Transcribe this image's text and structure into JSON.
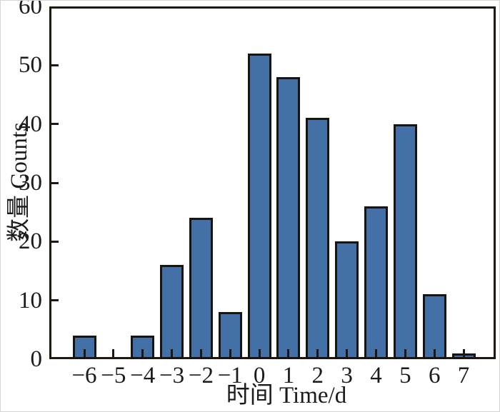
{
  "figure": {
    "background": "#ffffff",
    "frame_color": "#20180f",
    "bar_fill_color": "#4470a8",
    "bar_border_color": "#191410",
    "text_color": "#1b1b1b"
  },
  "chart_data": {
    "type": "bar",
    "title": "",
    "xlabel": "时间 Time/d",
    "ylabel": "数量 Counts",
    "categories": [
      "−6",
      "−5",
      "−4",
      "−3",
      "−2",
      "−1",
      "0",
      "1",
      "2",
      "3",
      "4",
      "5",
      "6",
      "7"
    ],
    "values": [
      4,
      0,
      4,
      16,
      24,
      8,
      52,
      48,
      41,
      20,
      26,
      40,
      11,
      1
    ],
    "ylim": [
      0,
      60
    ],
    "yticks": [
      0,
      10,
      20,
      30,
      40,
      50,
      60
    ],
    "grid": false,
    "legend": null,
    "bar_outline": true
  }
}
